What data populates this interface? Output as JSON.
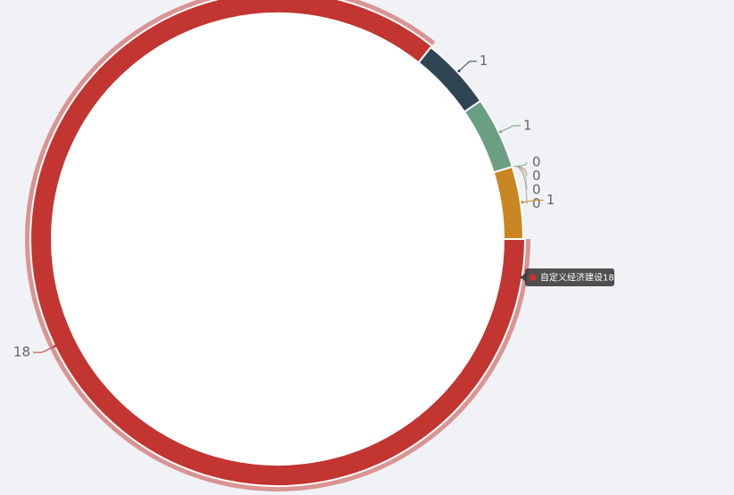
{
  "chart_data": {
    "type": "pie",
    "donut": true,
    "categories": [
      "自定义经济建设",
      null,
      null,
      null,
      null,
      null,
      null,
      null
    ],
    "values": [
      18,
      1,
      1,
      0,
      0,
      0,
      0,
      1
    ],
    "colors": [
      "#c23531",
      "#2f4554",
      "#6a9f83",
      "#61a0a8",
      "#d48265",
      "#91c7ae",
      "#bda29a",
      "#ca8622"
    ],
    "highlight": 0
  }
}
